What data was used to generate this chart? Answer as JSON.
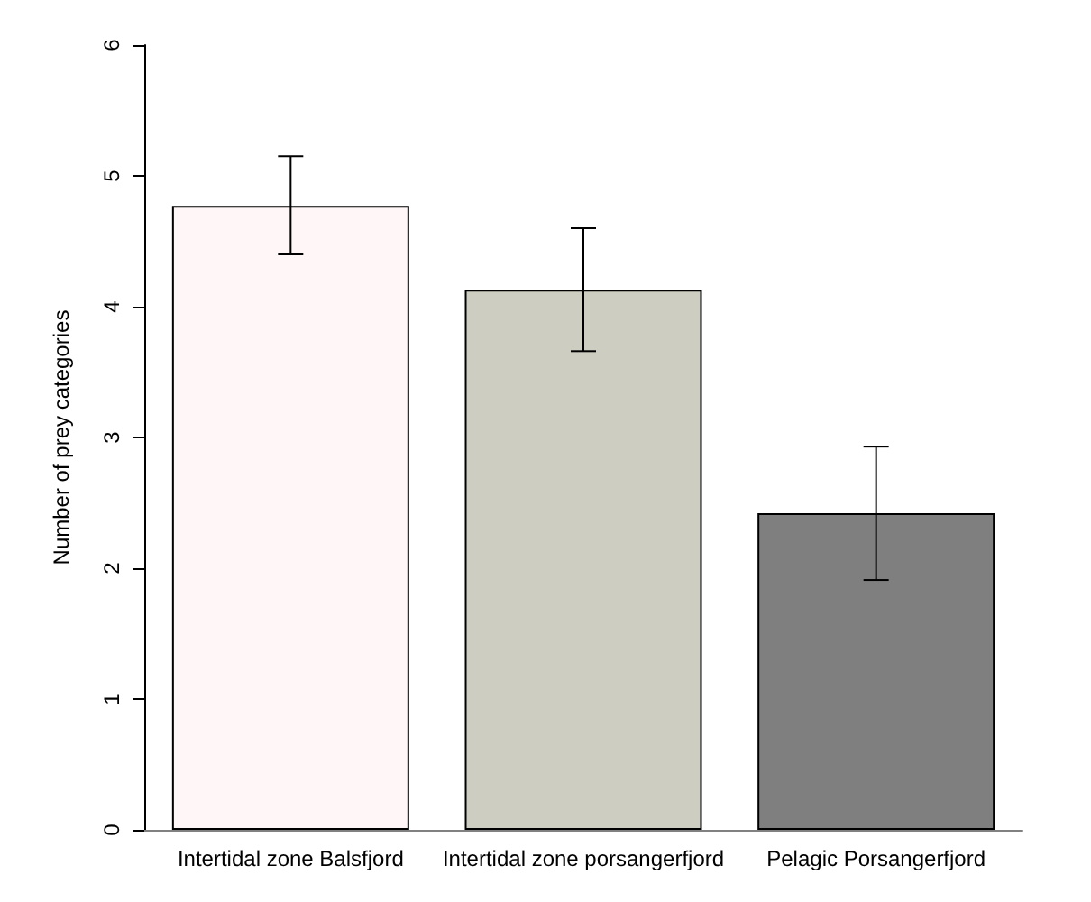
{
  "chart_data": {
    "type": "bar",
    "ylabel": "Number of prey categories",
    "categories": [
      "Intertidal zone Balsfjord",
      "Intertidal zone porsangerfjord",
      "Pelagic Porsangerfjord"
    ],
    "values": [
      4.77,
      4.13,
      2.42
    ],
    "colors": [
      "#fff7f7",
      "#cdcdc1",
      "#7f7f7f"
    ],
    "errors": [
      [
        4.4,
        5.15
      ],
      [
        3.66,
        4.6
      ],
      [
        1.91,
        2.93
      ]
    ],
    "ylim": [
      0,
      6
    ],
    "yticks": [
      0,
      1,
      2,
      3,
      4,
      5,
      6
    ],
    "grid": false
  }
}
